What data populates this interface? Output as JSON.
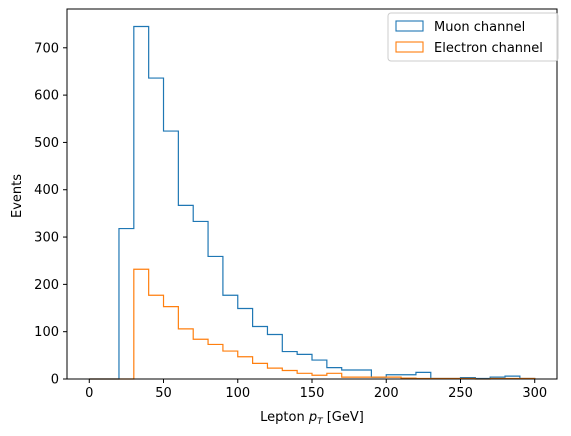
{
  "chart_data": {
    "type": "histogram-step",
    "xlabel_main": "Lepton ",
    "xlabel_var": "p",
    "xlabel_sub": "T",
    "xlabel_unit": " [GeV]",
    "ylabel": "Events",
    "xlim": [
      -15,
      315
    ],
    "ylim": [
      0,
      782
    ],
    "xticks": [
      0,
      50,
      100,
      150,
      200,
      250,
      300
    ],
    "yticks": [
      0,
      100,
      200,
      300,
      400,
      500,
      600,
      700
    ],
    "bin_edges": [
      0,
      10,
      20,
      30,
      40,
      50,
      60,
      70,
      80,
      90,
      100,
      110,
      120,
      130,
      140,
      150,
      160,
      170,
      180,
      190,
      200,
      210,
      220,
      230,
      240,
      250,
      260,
      270,
      280,
      290,
      300
    ],
    "legend_position": "top-right",
    "series": [
      {
        "name": "Muon channel",
        "color": "#1f77b4",
        "values": [
          0,
          0,
          318,
          745,
          636,
          524,
          367,
          333,
          259,
          177,
          149,
          111,
          94,
          58,
          52,
          40,
          24,
          19,
          19,
          4,
          9,
          9,
          14,
          1,
          1,
          3,
          1,
          4,
          6,
          1
        ]
      },
      {
        "name": "Electron channel",
        "color": "#ff7f0e",
        "values": [
          0,
          0,
          0,
          232,
          177,
          153,
          106,
          84,
          73,
          59,
          47,
          33,
          23,
          18,
          12,
          8,
          12,
          4,
          4,
          4,
          4,
          2,
          1,
          1,
          1,
          1,
          0,
          1,
          1,
          1
        ]
      }
    ]
  }
}
